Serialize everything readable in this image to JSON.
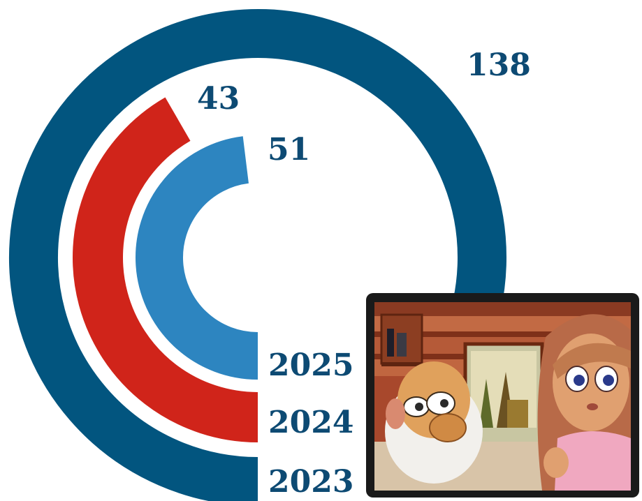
{
  "chart_data": {
    "type": "radial-bar",
    "series": [
      {
        "category": "2023",
        "value": 138,
        "color": "#02557f"
      },
      {
        "category": "2024",
        "value": 43,
        "color": "#d0241a"
      },
      {
        "category": "2025",
        "value": 51,
        "color": "#2d85c0"
      }
    ],
    "colors": {
      "label": "#0d4a73",
      "background": "#ffffff"
    }
  },
  "inset": {
    "icon": "cartoon-video-still"
  }
}
